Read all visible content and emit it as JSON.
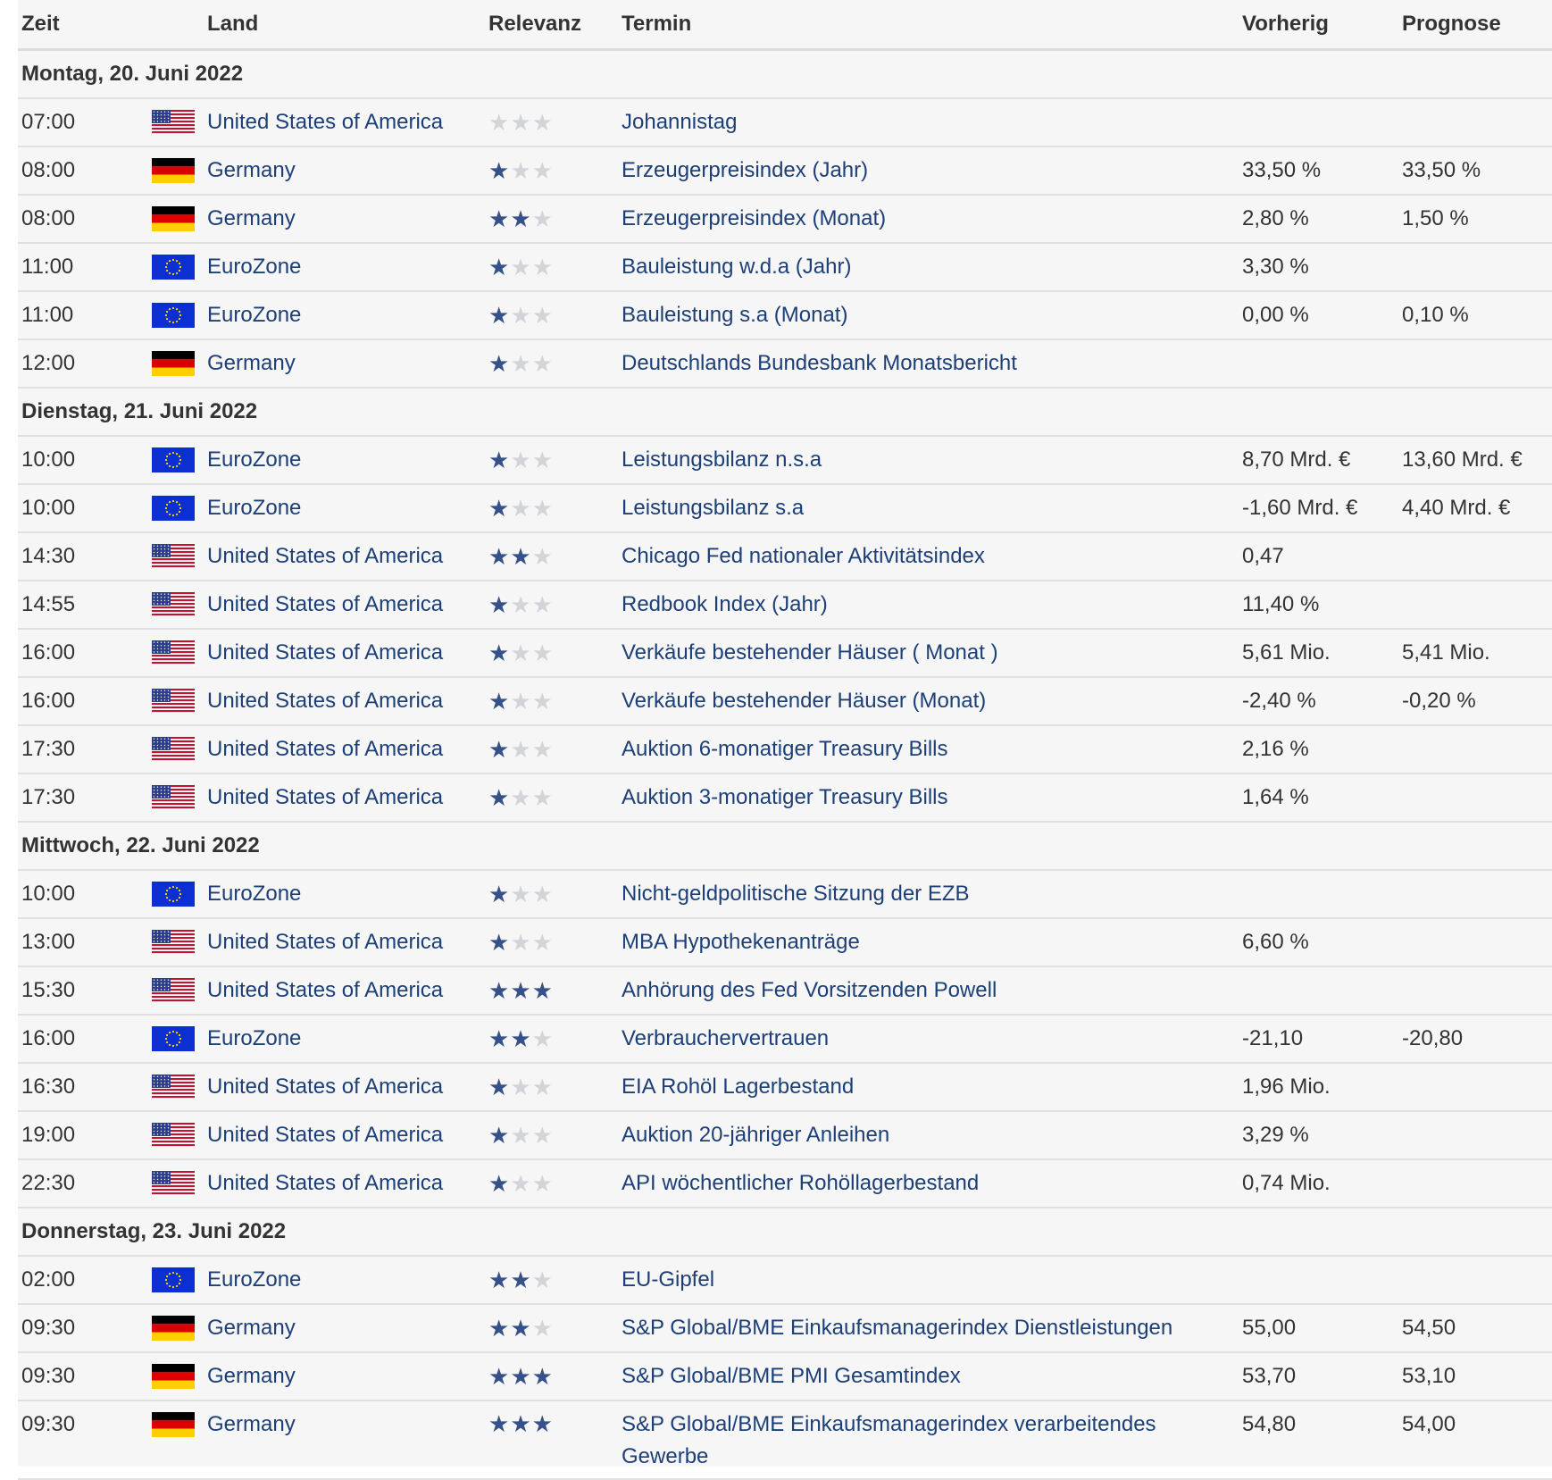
{
  "header": {
    "zeit": "Zeit",
    "land": "Land",
    "relevanz": "Relevanz",
    "termin": "Termin",
    "vorherig": "Vorherig",
    "prognose": "Prognose"
  },
  "days": [
    {
      "date": "Montag, 20. Juni 2022",
      "events": [
        {
          "time": "07:00",
          "flag": "us-flag-icon",
          "country": "United States of America",
          "stars": 0,
          "event": "Johannistag",
          "prev": "",
          "forecast": ""
        },
        {
          "time": "08:00",
          "flag": "de-flag-icon",
          "country": "Germany",
          "stars": 1,
          "event": "Erzeugerpreisindex (Jahr)",
          "prev": "33,50 %",
          "forecast": "33,50 %"
        },
        {
          "time": "08:00",
          "flag": "de-flag-icon",
          "country": "Germany",
          "stars": 2,
          "event": "Erzeugerpreisindex (Monat)",
          "prev": "2,80 %",
          "forecast": "1,50 %"
        },
        {
          "time": "11:00",
          "flag": "eu-flag-icon",
          "country": "EuroZone",
          "stars": 1,
          "event": "Bauleistung w.d.a (Jahr)",
          "prev": "3,30 %",
          "forecast": ""
        },
        {
          "time": "11:00",
          "flag": "eu-flag-icon",
          "country": "EuroZone",
          "stars": 1,
          "event": "Bauleistung s.a (Monat)",
          "prev": "0,00 %",
          "forecast": "0,10 %"
        },
        {
          "time": "12:00",
          "flag": "de-flag-icon",
          "country": "Germany",
          "stars": 1,
          "event": "Deutschlands Bundesbank Monatsbericht",
          "prev": "",
          "forecast": ""
        }
      ]
    },
    {
      "date": "Dienstag, 21. Juni 2022",
      "events": [
        {
          "time": "10:00",
          "flag": "eu-flag-icon",
          "country": "EuroZone",
          "stars": 1,
          "event": "Leistungsbilanz n.s.a",
          "prev": "8,70 Mrd. €",
          "forecast": "13,60 Mrd. €"
        },
        {
          "time": "10:00",
          "flag": "eu-flag-icon",
          "country": "EuroZone",
          "stars": 1,
          "event": "Leistungsbilanz s.a",
          "prev": "-1,60 Mrd. €",
          "forecast": "4,40 Mrd. €"
        },
        {
          "time": "14:30",
          "flag": "us-flag-icon",
          "country": "United States of America",
          "stars": 2,
          "event": "Chicago Fed nationaler Aktivitätsindex",
          "prev": "0,47",
          "forecast": ""
        },
        {
          "time": "14:55",
          "flag": "us-flag-icon",
          "country": "United States of America",
          "stars": 1,
          "event": "Redbook Index (Jahr)",
          "prev": "11,40 %",
          "forecast": ""
        },
        {
          "time": "16:00",
          "flag": "us-flag-icon",
          "country": "United States of America",
          "stars": 1,
          "event": "Verkäufe bestehender Häuser ( Monat )",
          "prev": "5,61 Mio.",
          "forecast": "5,41 Mio."
        },
        {
          "time": "16:00",
          "flag": "us-flag-icon",
          "country": "United States of America",
          "stars": 1,
          "event": "Verkäufe bestehender Häuser (Monat)",
          "prev": "-2,40 %",
          "forecast": "-0,20 %"
        },
        {
          "time": "17:30",
          "flag": "us-flag-icon",
          "country": "United States of America",
          "stars": 1,
          "event": "Auktion 6-monatiger Treasury Bills",
          "prev": "2,16 %",
          "forecast": ""
        },
        {
          "time": "17:30",
          "flag": "us-flag-icon",
          "country": "United States of America",
          "stars": 1,
          "event": "Auktion 3-monatiger Treasury Bills",
          "prev": "1,64 %",
          "forecast": ""
        }
      ]
    },
    {
      "date": "Mittwoch, 22. Juni 2022",
      "events": [
        {
          "time": "10:00",
          "flag": "eu-flag-icon",
          "country": "EuroZone",
          "stars": 1,
          "event": "Nicht-geldpolitische Sitzung der EZB",
          "prev": "",
          "forecast": ""
        },
        {
          "time": "13:00",
          "flag": "us-flag-icon",
          "country": "United States of America",
          "stars": 1,
          "event": "MBA Hypothekenanträge",
          "prev": "6,60 %",
          "forecast": ""
        },
        {
          "time": "15:30",
          "flag": "us-flag-icon",
          "country": "United States of America",
          "stars": 3,
          "event": "Anhörung des Fed Vorsitzenden Powell",
          "prev": "",
          "forecast": ""
        },
        {
          "time": "16:00",
          "flag": "eu-flag-icon",
          "country": "EuroZone",
          "stars": 2,
          "event": "Verbrauchervertrauen",
          "prev": "-21,10",
          "forecast": "-20,80"
        },
        {
          "time": "16:30",
          "flag": "us-flag-icon",
          "country": "United States of America",
          "stars": 1,
          "event": "EIA Rohöl Lagerbestand",
          "prev": "1,96 Mio.",
          "forecast": ""
        },
        {
          "time": "19:00",
          "flag": "us-flag-icon",
          "country": "United States of America",
          "stars": 1,
          "event": "Auktion 20-jähriger Anleihen",
          "prev": "3,29 %",
          "forecast": ""
        },
        {
          "time": "22:30",
          "flag": "us-flag-icon",
          "country": "United States of America",
          "stars": 1,
          "event": "API wöchentlicher Rohöllagerbestand",
          "prev": "0,74 Mio.",
          "forecast": ""
        }
      ]
    },
    {
      "date": "Donnerstag, 23. Juni 2022",
      "events": [
        {
          "time": "02:00",
          "flag": "eu-flag-icon",
          "country": "EuroZone",
          "stars": 2,
          "event": "EU-Gipfel",
          "prev": "",
          "forecast": ""
        },
        {
          "time": "09:30",
          "flag": "de-flag-icon",
          "country": "Germany",
          "stars": 2,
          "event": "S&P Global/BME Einkaufsmanagerindex Dienstleistungen",
          "prev": "55,00",
          "forecast": "54,50"
        },
        {
          "time": "09:30",
          "flag": "de-flag-icon",
          "country": "Germany",
          "stars": 3,
          "event": "S&P Global/BME PMI Gesamtindex",
          "prev": "53,70",
          "forecast": "53,10"
        },
        {
          "time": "09:30",
          "flag": "de-flag-icon",
          "country": "Germany",
          "stars": 3,
          "event": "S&P Global/BME Einkaufsmanagerindex verarbeitendes Gewerbe",
          "prev": "54,80",
          "forecast": "54,00",
          "wrap": true
        }
      ]
    }
  ],
  "colors": {
    "link": "#1c3f77",
    "star_on": "#36518a",
    "star_off": "#d2d4d8",
    "row_bg": "#f6f6f7"
  }
}
